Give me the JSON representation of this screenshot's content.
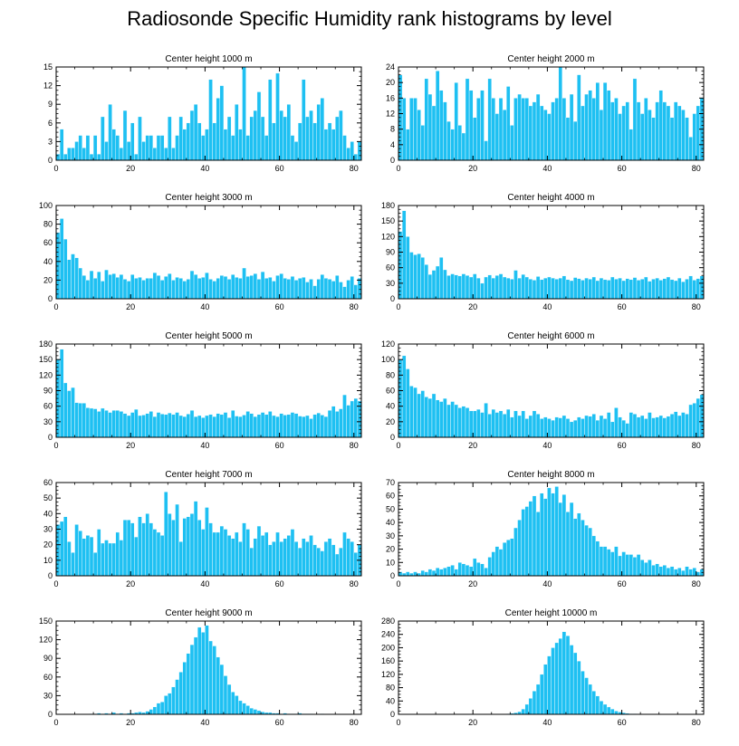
{
  "title": "Radiosonde Specific Humidity rank histograms by level",
  "colors": {
    "bar": "#1ec0f2",
    "bar_edge": "#ffffff",
    "axis": "#000000"
  },
  "chart_data": [
    {
      "type": "bar",
      "title": "Center height 1000 m",
      "xlim": [
        0,
        82
      ],
      "ylim": [
        0,
        15
      ],
      "xticks": [
        0,
        20,
        40,
        60,
        80
      ],
      "yticks": [
        0,
        3,
        6,
        9,
        12,
        15
      ],
      "values": [
        1,
        5,
        1,
        2,
        2,
        3,
        4,
        2,
        4,
        1,
        4,
        1,
        7,
        3,
        9,
        5,
        4,
        2,
        8,
        3,
        6,
        1,
        7,
        3,
        4,
        4,
        2,
        4,
        4,
        2,
        7,
        2,
        4,
        7,
        5,
        6,
        8,
        9,
        6,
        4,
        5,
        13,
        6,
        10,
        12,
        5,
        7,
        4,
        9,
        5,
        15,
        4,
        7,
        8,
        11,
        7,
        4,
        13,
        6,
        14,
        8,
        7,
        9,
        4,
        3,
        6,
        13,
        7,
        8,
        6,
        9,
        10,
        5,
        6,
        5,
        7,
        8,
        4,
        2,
        3,
        1,
        3
      ]
    },
    {
      "type": "bar",
      "title": "Center height 2000 m",
      "xlim": [
        0,
        82
      ],
      "ylim": [
        0,
        24
      ],
      "xticks": [
        0,
        20,
        40,
        60,
        80
      ],
      "yticks": [
        0,
        4,
        8,
        12,
        16,
        20,
        24
      ],
      "values": [
        22,
        16,
        8,
        16,
        16,
        13,
        9,
        21,
        17,
        14,
        23,
        18,
        15,
        10,
        8,
        20,
        9,
        7,
        21,
        18,
        11,
        16,
        18,
        5,
        21,
        16,
        12,
        16,
        13,
        19,
        9,
        16,
        17,
        16,
        16,
        14,
        15,
        17,
        14,
        13,
        12,
        15,
        16,
        24,
        16,
        11,
        17,
        10,
        22,
        14,
        17,
        18,
        16,
        20,
        13,
        20,
        18,
        15,
        16,
        12,
        14,
        15,
        8,
        21,
        15,
        12,
        16,
        13,
        11,
        15,
        18,
        15,
        14,
        11,
        15,
        14,
        13,
        11,
        6,
        12,
        14,
        16
      ]
    },
    {
      "type": "bar",
      "title": "Center height 3000 m",
      "xlim": [
        0,
        82
      ],
      "ylim": [
        0,
        100
      ],
      "xticks": [
        0,
        20,
        40,
        60,
        80
      ],
      "yticks": [
        0,
        20,
        40,
        60,
        80,
        100
      ],
      "values": [
        71,
        86,
        64,
        42,
        48,
        44,
        33,
        25,
        20,
        30,
        22,
        29,
        19,
        31,
        26,
        27,
        23,
        26,
        21,
        19,
        26,
        22,
        23,
        20,
        22,
        22,
        28,
        25,
        20,
        24,
        27,
        20,
        23,
        22,
        19,
        21,
        30,
        26,
        22,
        23,
        28,
        21,
        19,
        22,
        25,
        24,
        21,
        26,
        23,
        22,
        33,
        24,
        25,
        27,
        21,
        29,
        22,
        23,
        19,
        25,
        27,
        22,
        21,
        24,
        20,
        22,
        23,
        18,
        21,
        14,
        21,
        26,
        22,
        21,
        19,
        25,
        18,
        13,
        20,
        24,
        15,
        22
      ]
    },
    {
      "type": "bar",
      "title": "Center height 4000 m",
      "xlim": [
        0,
        82
      ],
      "ylim": [
        0,
        180
      ],
      "xticks": [
        0,
        20,
        40,
        60,
        80
      ],
      "yticks": [
        0,
        30,
        60,
        90,
        120,
        150,
        180
      ],
      "values": [
        130,
        170,
        120,
        90,
        85,
        87,
        80,
        66,
        47,
        55,
        63,
        80,
        56,
        45,
        48,
        46,
        44,
        48,
        45,
        42,
        48,
        40,
        30,
        42,
        46,
        40,
        45,
        48,
        42,
        40,
        38,
        55,
        40,
        47,
        42,
        38,
        36,
        43,
        37,
        40,
        42,
        40,
        38,
        40,
        44,
        37,
        35,
        41,
        39,
        36,
        40,
        38,
        42,
        35,
        40,
        37,
        36,
        42,
        38,
        40,
        35,
        39,
        37,
        41,
        36,
        38,
        42,
        34,
        38,
        40,
        36,
        39,
        42,
        37,
        35,
        40,
        33,
        38,
        44,
        36,
        39,
        44
      ]
    },
    {
      "type": "bar",
      "title": "Center height 5000 m",
      "xlim": [
        0,
        82
      ],
      "ylim": [
        0,
        180
      ],
      "xticks": [
        0,
        20,
        40,
        60,
        80
      ],
      "yticks": [
        0,
        30,
        60,
        90,
        120,
        150,
        180
      ],
      "values": [
        150,
        170,
        105,
        90,
        96,
        67,
        66,
        66,
        57,
        56,
        55,
        50,
        56,
        52,
        48,
        52,
        52,
        50,
        46,
        42,
        48,
        54,
        42,
        43,
        46,
        50,
        40,
        48,
        45,
        44,
        47,
        44,
        48,
        42,
        40,
        45,
        52,
        40,
        42,
        38,
        42,
        44,
        40,
        46,
        44,
        48,
        38,
        52,
        41,
        40,
        43,
        50,
        46,
        40,
        44,
        48,
        44,
        50,
        42,
        40,
        46,
        43,
        44,
        48,
        46,
        41,
        40,
        42,
        36,
        44,
        47,
        43,
        40,
        52,
        60,
        50,
        55,
        82,
        62,
        70,
        75,
        70
      ]
    },
    {
      "type": "bar",
      "title": "Center height 6000 m",
      "xlim": [
        0,
        82
      ],
      "ylim": [
        0,
        120
      ],
      "xticks": [
        0,
        20,
        40,
        60,
        80
      ],
      "yticks": [
        0,
        20,
        40,
        60,
        80,
        100,
        120
      ],
      "values": [
        100,
        105,
        88,
        66,
        64,
        56,
        60,
        52,
        50,
        56,
        48,
        46,
        50,
        42,
        46,
        42,
        38,
        40,
        38,
        34,
        34,
        36,
        32,
        44,
        30,
        36,
        32,
        34,
        30,
        36,
        26,
        34,
        28,
        34,
        24,
        28,
        34,
        30,
        24,
        26,
        24,
        22,
        26,
        25,
        28,
        24,
        20,
        22,
        26,
        24,
        28,
        27,
        30,
        22,
        28,
        24,
        32,
        20,
        38,
        26,
        22,
        18,
        32,
        30,
        26,
        28,
        24,
        32,
        25,
        26,
        28,
        25,
        27,
        30,
        33,
        28,
        32,
        30,
        42,
        44,
        50,
        55
      ]
    },
    {
      "type": "bar",
      "title": "Center height 7000 m",
      "xlim": [
        0,
        82
      ],
      "ylim": [
        0,
        60
      ],
      "xticks": [
        0,
        20,
        40,
        60,
        80
      ],
      "yticks": [
        0,
        10,
        20,
        30,
        40,
        50,
        60
      ],
      "values": [
        33,
        35,
        38,
        22,
        15,
        33,
        29,
        24,
        26,
        25,
        15,
        30,
        21,
        23,
        21,
        21,
        28,
        23,
        36,
        36,
        34,
        25,
        38,
        34,
        40,
        34,
        30,
        28,
        26,
        54,
        40,
        36,
        46,
        22,
        37,
        38,
        40,
        48,
        36,
        30,
        44,
        34,
        28,
        28,
        32,
        30,
        26,
        24,
        28,
        22,
        34,
        30,
        18,
        24,
        32,
        26,
        28,
        20,
        22,
        28,
        22,
        24,
        26,
        30,
        22,
        18,
        24,
        22,
        26,
        20,
        18,
        16,
        22,
        24,
        20,
        14,
        18,
        28,
        24,
        22,
        15,
        20
      ]
    },
    {
      "type": "bar",
      "title": "Center height 8000 m",
      "xlim": [
        0,
        82
      ],
      "ylim": [
        0,
        70
      ],
      "xticks": [
        0,
        20,
        40,
        60,
        80
      ],
      "yticks": [
        0,
        10,
        20,
        30,
        40,
        50,
        60,
        70
      ],
      "values": [
        3,
        2,
        3,
        2,
        3,
        2,
        4,
        3,
        5,
        4,
        6,
        5,
        6,
        7,
        8,
        5,
        10,
        9,
        8,
        7,
        13,
        10,
        9,
        6,
        14,
        18,
        22,
        20,
        25,
        27,
        28,
        36,
        42,
        50,
        52,
        56,
        60,
        48,
        62,
        58,
        66,
        62,
        67,
        55,
        61,
        48,
        55,
        43,
        47,
        42,
        38,
        36,
        30,
        26,
        22,
        22,
        20,
        18,
        22,
        15,
        18,
        16,
        16,
        14,
        16,
        12,
        10,
        12,
        8,
        9,
        7,
        8,
        6,
        7,
        5,
        6,
        4,
        7,
        5,
        6,
        3,
        5
      ]
    },
    {
      "type": "bar",
      "title": "Center height 9000 m",
      "xlim": [
        0,
        82
      ],
      "ylim": [
        0,
        150
      ],
      "xticks": [
        0,
        20,
        40,
        60,
        80
      ],
      "yticks": [
        0,
        30,
        60,
        90,
        120,
        150
      ],
      "values": [
        0,
        0,
        0,
        0,
        0,
        0,
        0,
        0,
        0,
        1,
        1,
        2,
        1,
        2,
        1,
        3,
        1,
        2,
        1,
        2,
        2,
        3,
        4,
        3,
        5,
        8,
        12,
        18,
        20,
        30,
        34,
        44,
        56,
        68,
        84,
        98,
        112,
        124,
        140,
        132,
        143,
        118,
        110,
        92,
        80,
        62,
        48,
        36,
        30,
        22,
        18,
        14,
        10,
        8,
        6,
        4,
        3,
        3,
        2,
        2,
        1,
        2,
        1,
        1,
        1,
        2,
        1,
        1,
        1,
        0,
        0,
        1,
        0,
        0,
        0,
        0,
        0,
        0,
        0,
        0,
        0,
        0
      ]
    },
    {
      "type": "bar",
      "title": "Center height 10000 m",
      "xlim": [
        0,
        82
      ],
      "ylim": [
        0,
        280
      ],
      "xticks": [
        0,
        20,
        40,
        60,
        80
      ],
      "yticks": [
        0,
        40,
        80,
        120,
        160,
        200,
        240,
        280
      ],
      "values": [
        0,
        0,
        0,
        0,
        0,
        0,
        0,
        0,
        0,
        0,
        0,
        0,
        0,
        0,
        0,
        0,
        0,
        0,
        0,
        0,
        0,
        0,
        0,
        0,
        0,
        0,
        0,
        0,
        1,
        2,
        3,
        5,
        8,
        16,
        30,
        48,
        70,
        90,
        120,
        150,
        175,
        200,
        215,
        228,
        248,
        236,
        208,
        185,
        160,
        130,
        110,
        90,
        70,
        55,
        40,
        30,
        22,
        16,
        10,
        7,
        5,
        3,
        2,
        2,
        1,
        1,
        1,
        0,
        0,
        0,
        0,
        0,
        0,
        0,
        0,
        0,
        0,
        0,
        0,
        0,
        0,
        0
      ]
    }
  ]
}
